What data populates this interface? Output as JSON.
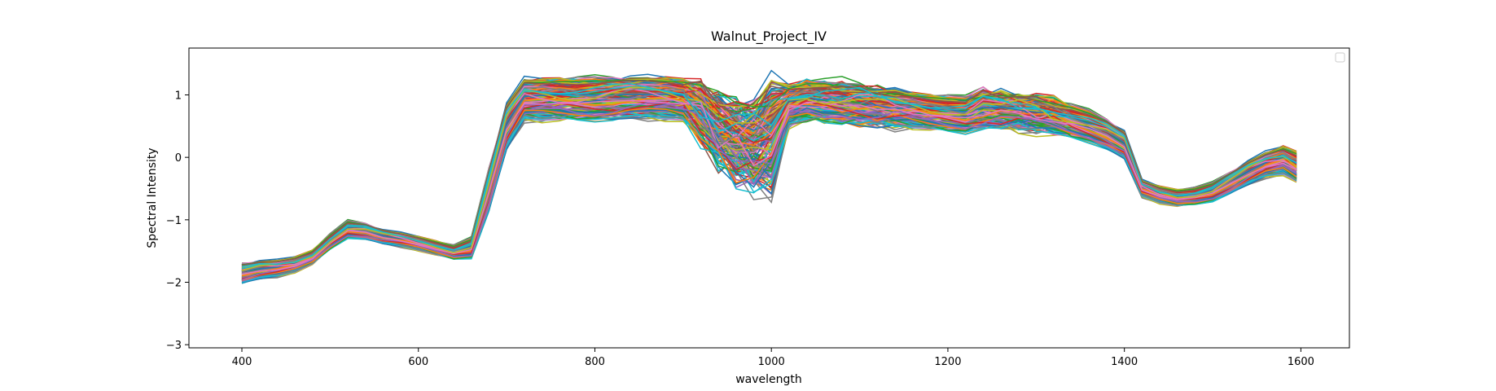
{
  "chart_data": {
    "type": "line",
    "title": "Walnut_Project_IV",
    "xlabel": "wavelength",
    "ylabel": "Spectral Intensity",
    "xlim": [
      340,
      1655
    ],
    "ylim": [
      -3.05,
      1.75
    ],
    "xticks": [
      400,
      600,
      800,
      1000,
      1200,
      1400,
      1600
    ],
    "yticks": [
      -3,
      -2,
      -1,
      0,
      1
    ],
    "grid": false,
    "legend": {
      "position": "upper right",
      "entries": []
    },
    "palette": [
      "#1f77b4",
      "#ff7f0e",
      "#2ca02c",
      "#d62728",
      "#9467bd",
      "#8c564b",
      "#e377c2",
      "#7f7f7f",
      "#bcbd22",
      "#17becf"
    ],
    "series_count": 200,
    "x": [
      400,
      420,
      440,
      460,
      480,
      500,
      520,
      540,
      560,
      580,
      600,
      620,
      640,
      660,
      680,
      700,
      720,
      740,
      760,
      780,
      800,
      820,
      840,
      860,
      880,
      900,
      920,
      940,
      960,
      980,
      1000,
      1020,
      1040,
      1060,
      1080,
      1100,
      1120,
      1140,
      1160,
      1180,
      1200,
      1220,
      1240,
      1260,
      1280,
      1300,
      1320,
      1340,
      1360,
      1380,
      1400,
      1420,
      1440,
      1460,
      1480,
      1500,
      1520,
      1540,
      1560,
      1580,
      1595
    ],
    "mean_profile": [
      -1.85,
      -1.8,
      -1.78,
      -1.72,
      -1.6,
      -1.35,
      -1.15,
      -1.18,
      -1.27,
      -1.32,
      -1.38,
      -1.45,
      -1.52,
      -1.45,
      -0.5,
      0.5,
      0.92,
      0.92,
      0.93,
      0.93,
      0.94,
      0.95,
      0.96,
      0.95,
      0.94,
      0.92,
      0.78,
      0.45,
      0.3,
      0.2,
      0.35,
      0.82,
      0.9,
      0.9,
      0.88,
      0.86,
      0.82,
      0.78,
      0.75,
      0.72,
      0.7,
      0.68,
      0.78,
      0.75,
      0.72,
      0.7,
      0.65,
      0.58,
      0.5,
      0.38,
      0.2,
      -0.5,
      -0.6,
      -0.65,
      -0.62,
      -0.55,
      -0.4,
      -0.25,
      -0.12,
      -0.05,
      -0.15
    ],
    "spread_profile": [
      0.14,
      0.13,
      0.12,
      0.11,
      0.1,
      0.11,
      0.12,
      0.11,
      0.1,
      0.1,
      0.1,
      0.1,
      0.1,
      0.14,
      0.3,
      0.33,
      0.3,
      0.3,
      0.3,
      0.3,
      0.3,
      0.3,
      0.3,
      0.3,
      0.3,
      0.3,
      0.33,
      0.45,
      0.5,
      0.55,
      0.75,
      0.3,
      0.28,
      0.28,
      0.28,
      0.27,
      0.27,
      0.26,
      0.25,
      0.25,
      0.25,
      0.25,
      0.26,
      0.25,
      0.25,
      0.25,
      0.24,
      0.23,
      0.22,
      0.21,
      0.2,
      0.12,
      0.12,
      0.12,
      0.12,
      0.13,
      0.15,
      0.17,
      0.18,
      0.2,
      0.22
    ]
  }
}
